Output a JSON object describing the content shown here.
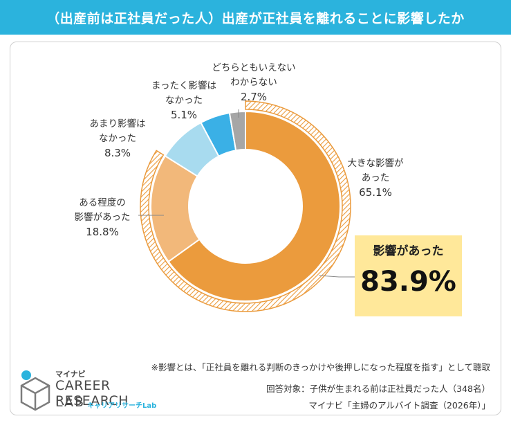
{
  "header": {
    "title": "（出産前は正社員だった人）出産が正社員を離れることに影響したか"
  },
  "chart_data": {
    "type": "pie",
    "donut": true,
    "slices": [
      {
        "label_lines": [
          "大きな影響が",
          "あった"
        ],
        "pct_label": "65.1%",
        "value": 65.1,
        "color": "#eb9b3d"
      },
      {
        "label_lines": [
          "ある程度の",
          "影響があった"
        ],
        "pct_label": "18.8%",
        "value": 18.8,
        "color": "#f2b87a"
      },
      {
        "label_lines": [
          "あまり影響は",
          "なかった"
        ],
        "pct_label": "8.3%",
        "value": 8.3,
        "color": "#a8dbef"
      },
      {
        "label_lines": [
          "まったく影響は",
          "なかった"
        ],
        "pct_label": "5.1%",
        "value": 5.1,
        "color": "#3ab0e6"
      },
      {
        "label_lines": [
          "どちらともいえない",
          "わからない"
        ],
        "pct_label": "2.7%",
        "value": 2.7,
        "color": "#a6a6a6"
      }
    ],
    "highlight": {
      "label": "影響があった",
      "value_label": "83.9%",
      "value": 83.9,
      "color": "#eb9b3d"
    }
  },
  "notes": {
    "footnote": "※影響とは、「正社員を離れる判断のきっかけや後押しになった程度を指す」として聴取",
    "respondents": "回答対象：子供が生まれる前は正社員だった人（348名）",
    "source": "マイナビ「主婦のアルバイト調査（2026年）」"
  },
  "logo": {
    "brand": "マイナビ",
    "line1": "CAREER RESEARCH",
    "line2": "LAB",
    "sub": "キャリアリサーチLab"
  }
}
